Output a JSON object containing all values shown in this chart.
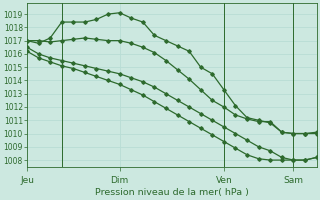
{
  "background_color": "#cce8e0",
  "grid_color": "#b8ddd5",
  "line_color": "#2d6a2d",
  "ylabel": "Pression niveau de la mer( hPa )",
  "ylim": [
    1007.5,
    1019.8
  ],
  "yticks": [
    1008,
    1009,
    1010,
    1011,
    1012,
    1013,
    1014,
    1015,
    1016,
    1017,
    1018,
    1019
  ],
  "xtick_labels": [
    "Jeu",
    "Dim",
    "Ven",
    "Sam"
  ],
  "xtick_positions": [
    0,
    8,
    17,
    23
  ],
  "series1_x": [
    0,
    1,
    2,
    3,
    4,
    5,
    6,
    7,
    8,
    9,
    10,
    11,
    12,
    13,
    14,
    15,
    16,
    17,
    18,
    19,
    20,
    21,
    22,
    23,
    24,
    25
  ],
  "series1_y": [
    1017.0,
    1017.0,
    1016.9,
    1017.0,
    1017.1,
    1017.2,
    1017.1,
    1017.0,
    1017.0,
    1016.8,
    1016.5,
    1016.1,
    1015.5,
    1014.8,
    1014.1,
    1013.3,
    1012.5,
    1012.0,
    1011.4,
    1011.1,
    1010.9,
    1010.9,
    1010.1,
    1010.0,
    1010.0,
    1010.1
  ],
  "series2_x": [
    0,
    1,
    2,
    3,
    4,
    5,
    6,
    7,
    8,
    9,
    10,
    11,
    12,
    13,
    14,
    15,
    16,
    17,
    18,
    19,
    20,
    21,
    22,
    23,
    24,
    25
  ],
  "series2_y": [
    1017.0,
    1016.8,
    1017.2,
    1018.4,
    1018.4,
    1018.4,
    1018.6,
    1019.0,
    1019.1,
    1018.7,
    1018.4,
    1017.4,
    1017.0,
    1016.6,
    1016.2,
    1015.0,
    1014.5,
    1013.3,
    1012.1,
    1011.2,
    1011.0,
    1010.8,
    1010.1,
    1010.0,
    1010.0,
    1010.0
  ],
  "series3_x": [
    0,
    1,
    2,
    3,
    4,
    5,
    6,
    7,
    8,
    9,
    10,
    11,
    12,
    13,
    14,
    15,
    16,
    17,
    18,
    19,
    20,
    21,
    22,
    23,
    24,
    25
  ],
  "series3_y": [
    1016.5,
    1016.0,
    1015.7,
    1015.5,
    1015.3,
    1015.1,
    1014.9,
    1014.7,
    1014.5,
    1014.2,
    1013.9,
    1013.5,
    1013.0,
    1012.5,
    1012.0,
    1011.5,
    1011.0,
    1010.5,
    1010.0,
    1009.5,
    1009.0,
    1008.7,
    1008.2,
    1008.0,
    1008.0,
    1008.2
  ],
  "series4_x": [
    0,
    1,
    2,
    3,
    4,
    5,
    6,
    7,
    8,
    9,
    10,
    11,
    12,
    13,
    14,
    15,
    16,
    17,
    18,
    19,
    20,
    21,
    22,
    23,
    24,
    25
  ],
  "series4_y": [
    1016.2,
    1015.7,
    1015.4,
    1015.1,
    1014.9,
    1014.6,
    1014.3,
    1014.0,
    1013.7,
    1013.3,
    1012.9,
    1012.4,
    1011.9,
    1011.4,
    1010.9,
    1010.4,
    1009.9,
    1009.4,
    1008.9,
    1008.4,
    1008.1,
    1008.0,
    1008.0,
    1008.0,
    1008.0,
    1008.2
  ],
  "vlines_x": [
    3,
    17,
    23
  ],
  "n_points": 26
}
